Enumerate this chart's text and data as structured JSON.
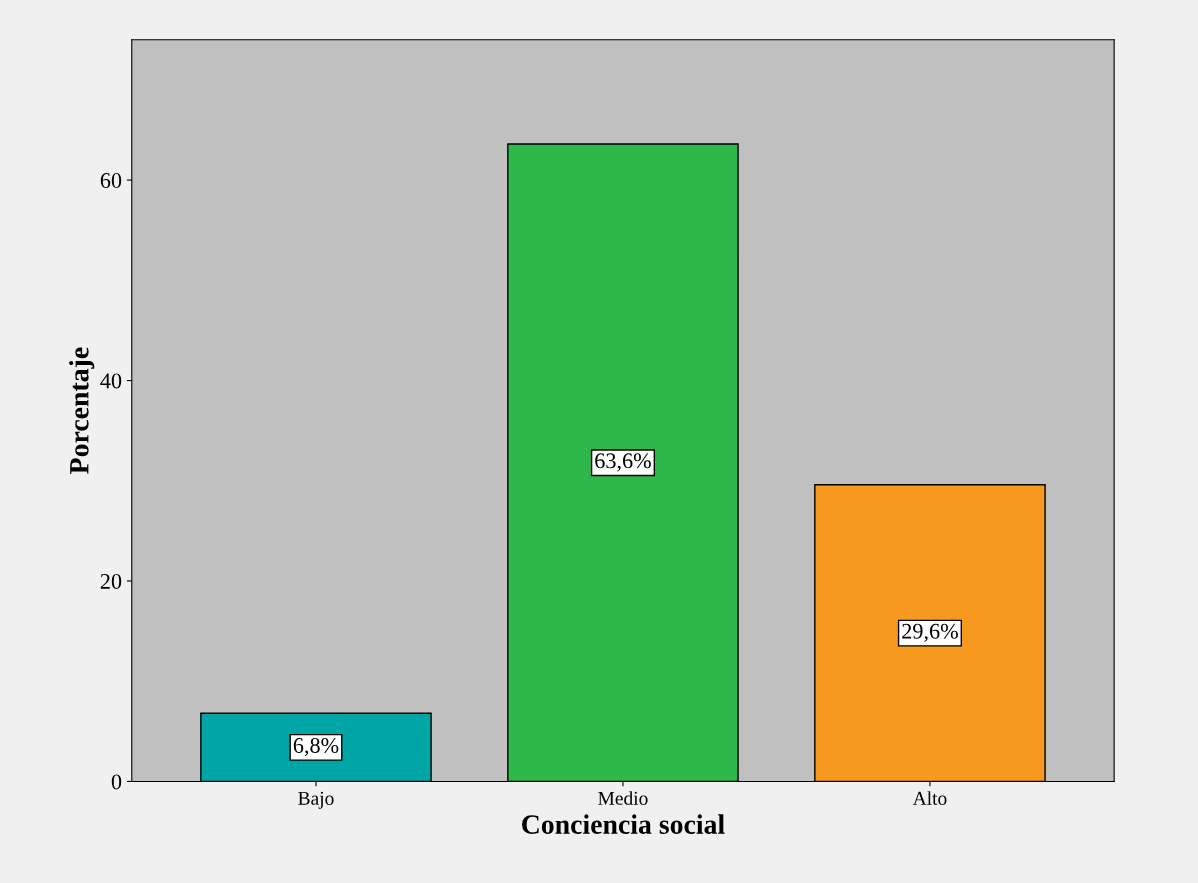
{
  "chart_data": {
    "type": "bar",
    "xlabel": "Conciencia social",
    "ylabel": "Porcentaje",
    "categories": [
      "Bajo",
      "Medio",
      "Alto"
    ],
    "values": [
      6.8,
      63.6,
      29.6
    ],
    "colors": [
      "#00a5a5",
      "#2eb84a",
      "#f7981f"
    ],
    "value_labels": [
      "6,8%",
      "63,6%",
      "29,6%"
    ],
    "ylim": [
      0,
      74
    ],
    "yticks": [
      0,
      20,
      40,
      60
    ],
    "grid": false,
    "legend": false
  }
}
